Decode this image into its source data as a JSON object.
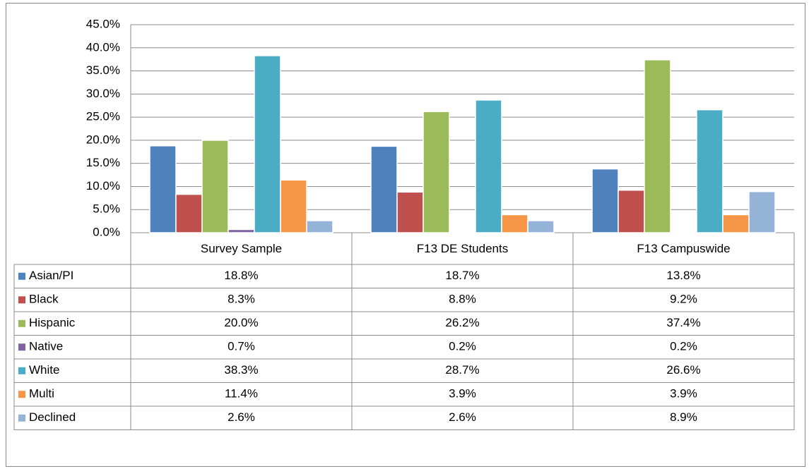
{
  "chart_data": {
    "type": "bar",
    "categories": [
      "Survey Sample",
      "F13 DE Students",
      "F13 Campuswide"
    ],
    "series": [
      {
        "name": "Asian/PI",
        "color": "#4F81BD",
        "values": [
          18.8,
          18.7,
          13.8
        ],
        "value_labels": [
          "18.8%",
          "18.7%",
          "13.8%"
        ]
      },
      {
        "name": "Black",
        "color": "#C0504D",
        "values": [
          8.3,
          8.8,
          9.2
        ],
        "value_labels": [
          "8.3%",
          "8.8%",
          "9.2%"
        ]
      },
      {
        "name": "Hispanic",
        "color": "#9BBB59",
        "values": [
          20.0,
          26.2,
          37.4
        ],
        "value_labels": [
          "20.0%",
          "26.2%",
          "37.4%"
        ]
      },
      {
        "name": "Native",
        "color": "#8064A2",
        "values": [
          0.7,
          0.2,
          0.2
        ],
        "value_labels": [
          "0.7%",
          "0.2%",
          "0.2%"
        ]
      },
      {
        "name": "White",
        "color": "#4BACC6",
        "values": [
          38.3,
          28.7,
          26.6
        ],
        "value_labels": [
          "38.3%",
          "28.7%",
          "26.6%"
        ]
      },
      {
        "name": "Multi",
        "color": "#F79646",
        "values": [
          11.4,
          3.9,
          3.9
        ],
        "value_labels": [
          "11.4%",
          "3.9%",
          "3.9%"
        ]
      },
      {
        "name": "Declined",
        "color": "#95B3D7",
        "values": [
          2.6,
          2.6,
          8.9
        ],
        "value_labels": [
          "2.6%",
          "2.6%",
          "8.9%"
        ]
      }
    ],
    "ylim": [
      0,
      45
    ],
    "yticks": [
      {
        "value": 0,
        "label": "0.0%"
      },
      {
        "value": 5,
        "label": "5.0%"
      },
      {
        "value": 10,
        "label": "10.0%"
      },
      {
        "value": 15,
        "label": "15.0%"
      },
      {
        "value": 20,
        "label": "20.0%"
      },
      {
        "value": 25,
        "label": "25.0%"
      },
      {
        "value": 30,
        "label": "30.0%"
      },
      {
        "value": 35,
        "label": "35.0%"
      },
      {
        "value": 40,
        "label": "40.0%"
      },
      {
        "value": 45,
        "label": "45.0%"
      }
    ],
    "grid": true
  }
}
